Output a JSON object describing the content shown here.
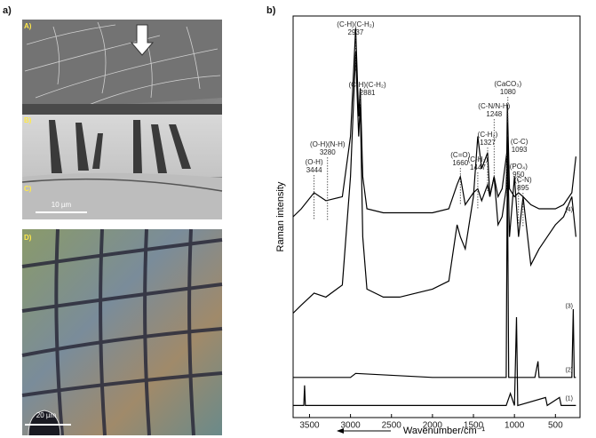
{
  "figure": {
    "panel_a": "a)",
    "subpanels": [
      "A)",
      "B)",
      "C)",
      "D)"
    ],
    "scalebar_top": "10 µm",
    "scalebar_bottom": "20 µm"
  },
  "chart_data": {
    "type": "line",
    "panel": "b)",
    "xlabel": "Wavenumber/cm⁻¹",
    "ylabel": "Raman intensity",
    "xlim": [
      3700,
      200
    ],
    "ylim": [
      0,
      100
    ],
    "xticks": [
      3500,
      3000,
      2500,
      2000,
      1500,
      1000,
      500
    ],
    "series": [
      {
        "name": "(1)",
        "color": "#000000",
        "x": [
          3700,
          3570,
          3560,
          3550,
          1100,
          1050,
          1000,
          975,
          960,
          620,
          600,
          450,
          430,
          250
        ],
        "values": [
          3,
          3,
          8,
          3,
          3,
          6,
          3,
          25,
          3,
          5,
          3,
          5,
          3,
          3
        ]
      },
      {
        "name": "(2)",
        "color": "#000000",
        "x": [
          3700,
          3000,
          2937,
          2000,
          1200,
          1100,
          1086,
          1070,
          750,
          712,
          700,
          300,
          282,
          270,
          250
        ],
        "values": [
          10,
          10,
          11,
          10,
          10,
          10,
          64,
          10,
          10,
          14,
          10,
          10,
          27,
          10,
          10
        ]
      },
      {
        "name": "(3)",
        "color": "#000000",
        "x": [
          3700,
          3600,
          3444,
          3300,
          3100,
          3000,
          2937,
          2900,
          2881,
          2850,
          2800,
          2600,
          2400,
          2200,
          2000,
          1800,
          1700,
          1660,
          1600,
          1500,
          1447,
          1400,
          1327,
          1300,
          1248,
          1200,
          1150,
          1100,
          1086,
          1060,
          1000,
          950,
          895,
          800,
          700,
          600,
          500,
          400,
          300,
          250
        ],
        "values": [
          26,
          28,
          31,
          30,
          33,
          60,
          91,
          70,
          78,
          45,
          32,
          30,
          30,
          31,
          32,
          34,
          48,
          45,
          42,
          55,
          70,
          62,
          66,
          55,
          60,
          48,
          50,
          57,
          70,
          45,
          60,
          45,
          55,
          38,
          42,
          45,
          48,
          50,
          55,
          45
        ]
      },
      {
        "name": "(4)",
        "color": "#000000",
        "x": [
          3700,
          3600,
          3444,
          3300,
          3100,
          3000,
          2937,
          2900,
          2881,
          2850,
          2800,
          2600,
          2400,
          2200,
          2000,
          1800,
          1700,
          1660,
          1600,
          1500,
          1447,
          1400,
          1327,
          1300,
          1248,
          1200,
          1150,
          1093,
          1086,
          1060,
          1000,
          950,
          895,
          800,
          700,
          600,
          500,
          400,
          300,
          250
        ],
        "values": [
          50,
          52,
          56,
          54,
          55,
          70,
          97,
          75,
          82,
          60,
          52,
          51,
          51,
          51,
          51,
          52,
          58,
          60,
          53,
          56,
          57,
          54,
          58,
          55,
          60,
          55,
          57,
          66,
          78,
          57,
          55,
          56,
          55,
          53,
          52,
          52,
          52,
          53,
          56,
          65
        ]
      }
    ],
    "annotations": [
      {
        "label": "(O-H)",
        "x": 3444
      },
      {
        "label": "(O-H)(N-H)",
        "x": 3280
      },
      {
        "label": "(C-H)(C-H₂)",
        "x": 2937
      },
      {
        "label": "(C-H)(C-H₂)",
        "x": 2881
      },
      {
        "label": "(C=O)",
        "x": 1660
      },
      {
        "label": "(C-H₂)",
        "x": 1447
      },
      {
        "label": "(C-H₂)",
        "x": 1327
      },
      {
        "label": "(C-N/N-H)",
        "x": 1248
      },
      {
        "label": "(CaCO₃)",
        "x": 1080
      },
      {
        "label": "(C-C)",
        "x": 1093
      },
      {
        "label": "(PO₄)",
        "x": 950
      },
      {
        "label": "(C-N)",
        "x": 895
      }
    ]
  }
}
